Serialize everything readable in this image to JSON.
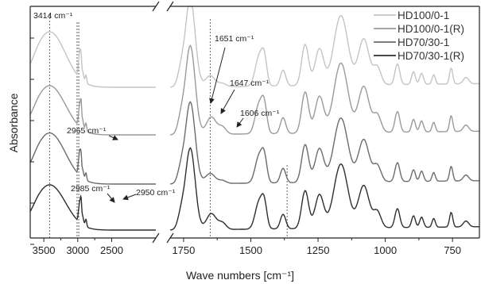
{
  "chart_data": {
    "type": "line",
    "xlabel": "Wave numbers [cm⁻¹]",
    "ylabel": "Absorbance",
    "x_axis": "reversed, broken between 1850 and 1800",
    "x_left_range": [
      3700,
      1850
    ],
    "x_right_range": [
      1800,
      650
    ],
    "x_ticks": [
      {
        "value": 3500,
        "label": "3500"
      },
      {
        "value": 3000,
        "label": "3000"
      },
      {
        "value": 2500,
        "label": "2500"
      },
      {
        "value": 1750,
        "label": "1750"
      },
      {
        "value": 1500,
        "label": "1500"
      },
      {
        "value": 1250,
        "label": "1250"
      },
      {
        "value": 1000,
        "label": "1000"
      },
      {
        "value": 750,
        "label": "750"
      }
    ],
    "y_tick_count": 6,
    "y_tick_labels": false,
    "grid": false,
    "legend_position": "top-right",
    "series": [
      {
        "name": "HD100/0-1",
        "color": "#c4c4c4",
        "offset": 3
      },
      {
        "name": "HD100/0-1(R)",
        "color": "#9a9a9a",
        "offset": 2
      },
      {
        "name": "HD70/30-1",
        "color": "#6c6c6c",
        "offset": 1
      },
      {
        "name": "HD70/30-1(R)",
        "color": "#2e2e2e",
        "offset": 0
      }
    ],
    "reference_lines": [
      3414,
      3010,
      2985,
      1651,
      1365
    ],
    "annotations": [
      {
        "text": "3414 cm⁻¹",
        "x": 3414
      },
      {
        "text": "2965 cm⁻¹",
        "x": 2965
      },
      {
        "text": "2985 cm⁻¹",
        "x": 2985
      },
      {
        "text": "2950 cm⁻¹",
        "x": 2950
      },
      {
        "text": "1651 cm⁻¹",
        "x": 1651
      },
      {
        "text": "1647 cm⁻¹",
        "x": 1647
      },
      {
        "text": "1606 cm⁻¹",
        "x": 1606
      }
    ]
  }
}
